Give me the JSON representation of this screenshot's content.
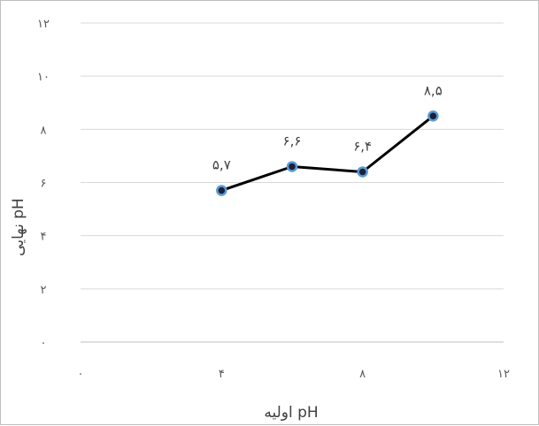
{
  "chart_data": {
    "type": "scatter",
    "title": "",
    "xlabel": "pH اولیه",
    "ylabel": "pH نهایی",
    "xlim": [
      0,
      12
    ],
    "ylim": [
      0,
      12
    ],
    "x_ticks": [
      0,
      4,
      8,
      12
    ],
    "y_ticks": [
      0,
      2,
      4,
      6,
      8,
      10,
      12
    ],
    "x_tick_labels": [
      "۰",
      "۴",
      "۸",
      "۱۲"
    ],
    "y_tick_labels": [
      "۰",
      "۲",
      "۴",
      "۶",
      "۸",
      "۱۰",
      "۱۲"
    ],
    "grid": "horizontal",
    "legend": "none",
    "series": [
      {
        "x": [
          4,
          6,
          8,
          10
        ],
        "y": [
          5.7,
          6.6,
          6.4,
          8.5
        ],
        "data_labels": [
          "۵,۷",
          "۶,۶",
          "۶,۴",
          "۸,۵"
        ],
        "line_color": "#000000",
        "marker_fill": "#1f1f3a",
        "marker_edge": "#5b9bd5"
      }
    ]
  }
}
